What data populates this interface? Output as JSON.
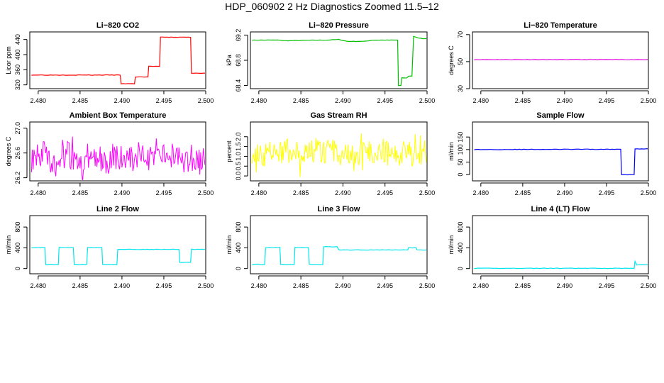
{
  "page": {
    "title": "HDP_060902  2 Hz Diagnostics Zoomed 11.5–12"
  },
  "chart_data": [
    {
      "type": "line",
      "title": "Li−820 CO2",
      "xlabel": "",
      "ylabel": "Licor ppm",
      "color": "#ff0000",
      "xlim": [
        2.479,
        2.5
      ],
      "ylim": [
        310,
        460
      ],
      "x_ticks": [
        "2.480",
        "2.485",
        "2.490",
        "2.495",
        "2.500"
      ],
      "y_ticks": [
        {
          "v": 320,
          "label": "320"
        },
        {
          "v": 360,
          "label": "360"
        },
        {
          "v": 400,
          "label": "400"
        },
        {
          "v": 440,
          "label": "440"
        }
      ],
      "series": [
        {
          "x": [
            2.4792,
            2.4898,
            2.4899,
            2.4915,
            2.4916,
            2.4931,
            2.4932,
            2.4945,
            2.4946,
            2.4982,
            2.4983,
            2.5
          ],
          "y": [
            346,
            346,
            323,
            323,
            341,
            341,
            369,
            369,
            446,
            446,
            351,
            351
          ]
        }
      ]
    },
    {
      "type": "line",
      "title": "Li−820 Pressure",
      "xlabel": "",
      "ylabel": "kPa",
      "color": "#00c000",
      "xlim": [
        2.479,
        2.5
      ],
      "ylim": [
        68.35,
        69.25
      ],
      "x_ticks": [
        "2.480",
        "2.485",
        "2.490",
        "2.495",
        "2.500"
      ],
      "y_ticks": [
        {
          "v": 68.4,
          "label": "68.4"
        },
        {
          "v": 68.8,
          "label": "68.8"
        },
        {
          "v": 69.2,
          "label": "69.2"
        }
      ],
      "series": [
        {
          "x": [
            2.4792,
            2.4825,
            2.483,
            2.4875,
            2.488,
            2.4895,
            2.4905,
            2.4925,
            2.4935,
            2.4965,
            2.4966,
            2.4969,
            2.497,
            2.4976,
            2.4978,
            2.4982,
            2.4984,
            2.499,
            2.5
          ],
          "y": [
            69.12,
            69.12,
            69.11,
            69.12,
            69.12,
            69.13,
            69.1,
            69.1,
            69.12,
            69.12,
            68.4,
            68.4,
            68.52,
            68.52,
            68.55,
            68.55,
            69.18,
            69.15,
            69.14
          ]
        }
      ]
    },
    {
      "type": "line",
      "title": "Li−820 Temperature",
      "xlabel": "",
      "ylabel": "degrees C",
      "color": "#e000e0",
      "xlim": [
        2.479,
        2.5
      ],
      "ylim": [
        30,
        72
      ],
      "x_ticks": [
        "2.480",
        "2.485",
        "2.490",
        "2.495",
        "2.500"
      ],
      "y_ticks": [
        {
          "v": 30,
          "label": "30"
        },
        {
          "v": 50,
          "label": "50"
        },
        {
          "v": 70,
          "label": "70"
        }
      ],
      "series": [
        {
          "x": [
            2.4792,
            2.5
          ],
          "y": [
            51.5,
            51.5
          ]
        }
      ]
    },
    {
      "type": "line",
      "title": "Ambient Box Temperature",
      "xlabel": "",
      "ylabel": "degrees C",
      "color": "#ff00ff",
      "xlim": [
        2.479,
        2.5
      ],
      "ylim": [
        26.15,
        27.1
      ],
      "x_ticks": [
        "2.480",
        "2.485",
        "2.490",
        "2.495",
        "2.500"
      ],
      "y_ticks": [
        {
          "v": 26.2,
          "label": "26.2"
        },
        {
          "v": 26.6,
          "label": "26.6"
        },
        {
          "v": 27.0,
          "label": "27.0"
        }
      ],
      "series": [
        {
          "x": [
            2.4792,
            2.4805,
            2.482,
            2.4835,
            2.485,
            2.4865,
            2.488,
            2.4895,
            2.491,
            2.4925,
            2.494,
            2.4955,
            2.497,
            2.4985,
            2.5
          ],
          "y": [
            26.5,
            26.62,
            26.41,
            26.58,
            26.47,
            26.6,
            26.44,
            26.55,
            26.49,
            26.61,
            26.43,
            26.57,
            26.5,
            26.46,
            26.55
          ]
        }
      ]
    },
    {
      "type": "line",
      "title": "Gas Stream RH",
      "xlabel": "",
      "ylabel": "percent",
      "color": "#ffff00",
      "xlim": [
        2.479,
        2.5
      ],
      "ylim": [
        -0.25,
        2.75
      ],
      "x_ticks": [
        "2.480",
        "2.485",
        "2.490",
        "2.495",
        "2.500"
      ],
      "y_ticks": [
        {
          "v": 0,
          "label": "0.0"
        },
        {
          "v": 0.5,
          "label": "0.5"
        },
        {
          "v": 1.0,
          "label": "1.0"
        },
        {
          "v": 1.5,
          "label": "1.5"
        },
        {
          "v": 2.0,
          "label": "2.0"
        }
      ],
      "series": [
        {
          "x": [
            2.4792,
            2.481,
            2.4825,
            2.484,
            2.4855,
            2.487,
            2.4885,
            2.49,
            2.4915,
            2.493,
            2.4945,
            2.496,
            2.4975,
            2.499,
            2.5
          ],
          "y": [
            1.3,
            1.05,
            1.3,
            1.2,
            0.95,
            1.35,
            1.25,
            1.1,
            0.85,
            1.35,
            1.3,
            1.0,
            1.2,
            1.1,
            1.25
          ]
        }
      ]
    },
    {
      "type": "line",
      "title": "Sample Flow",
      "xlabel": "",
      "ylabel": "ml/min",
      "color": "#0000ff",
      "xlim": [
        2.479,
        2.5
      ],
      "ylim": [
        -25,
        210
      ],
      "x_ticks": [
        "2.480",
        "2.485",
        "2.490",
        "2.495",
        "2.500"
      ],
      "y_ticks": [
        {
          "v": 0,
          "label": "0"
        },
        {
          "v": 50,
          "label": "50"
        },
        {
          "v": 100,
          "label": "100"
        },
        {
          "v": 150,
          "label": "150"
        }
      ],
      "series": [
        {
          "x": [
            2.4792,
            2.491,
            2.4967,
            2.4968,
            2.4983,
            2.4984,
            2.5
          ],
          "y": [
            100,
            101,
            101,
            0,
            0,
            103,
            103
          ]
        }
      ]
    },
    {
      "type": "line",
      "title": "Line 2 Flow",
      "xlabel": "",
      "ylabel": "ml/min",
      "color": "#00e5ee",
      "xlim": [
        2.479,
        2.5
      ],
      "ylim": [
        -100,
        1020
      ],
      "x_ticks": [
        "2.480",
        "2.485",
        "2.490",
        "2.495",
        "2.500"
      ],
      "y_ticks": [
        {
          "v": 0,
          "label": "0"
        },
        {
          "v": 400,
          "label": "400"
        },
        {
          "v": 800,
          "label": "800"
        }
      ],
      "series": [
        {
          "x": [
            2.4792,
            2.4808,
            2.4809,
            2.4824,
            2.4825,
            2.4842,
            2.4843,
            2.4858,
            2.4859,
            2.4876,
            2.4877,
            2.4894,
            2.4895,
            2.4968,
            2.4969,
            2.4982,
            2.4983,
            2.5
          ],
          "y": [
            405,
            405,
            80,
            80,
            405,
            405,
            80,
            80,
            405,
            405,
            80,
            80,
            370,
            370,
            120,
            120,
            370,
            370
          ]
        }
      ]
    },
    {
      "type": "line",
      "title": "Line 3 Flow",
      "xlabel": "",
      "ylabel": "ml/min",
      "color": "#00e5ee",
      "xlim": [
        2.479,
        2.5
      ],
      "ylim": [
        -100,
        1020
      ],
      "x_ticks": [
        "2.480",
        "2.485",
        "2.490",
        "2.495",
        "2.500"
      ],
      "y_ticks": [
        {
          "v": 0,
          "label": "0"
        },
        {
          "v": 400,
          "label": "400"
        },
        {
          "v": 800,
          "label": "800"
        }
      ],
      "series": [
        {
          "x": [
            2.4792,
            2.4807,
            2.4808,
            2.4825,
            2.4826,
            2.4842,
            2.4843,
            2.4859,
            2.486,
            2.4876,
            2.4877,
            2.4893,
            2.4895,
            2.4977,
            2.4978,
            2.4987,
            2.4988,
            2.5
          ],
          "y": [
            80,
            80,
            405,
            405,
            80,
            80,
            405,
            405,
            80,
            80,
            420,
            420,
            360,
            360,
            400,
            400,
            360,
            360
          ]
        }
      ]
    },
    {
      "type": "line",
      "title": "Line 4 (LT) Flow",
      "xlabel": "",
      "ylabel": "ml/min",
      "color": "#00e5ee",
      "xlim": [
        2.479,
        2.5
      ],
      "ylim": [
        -100,
        1020
      ],
      "x_ticks": [
        "2.480",
        "2.485",
        "2.490",
        "2.495",
        "2.500"
      ],
      "y_ticks": [
        {
          "v": 0,
          "label": "0"
        },
        {
          "v": 400,
          "label": "400"
        },
        {
          "v": 800,
          "label": "800"
        }
      ],
      "series": [
        {
          "x": [
            2.4792,
            2.4983,
            2.4984,
            2.4986,
            2.5
          ],
          "y": [
            5,
            5,
            140,
            75,
            75
          ]
        }
      ]
    }
  ]
}
